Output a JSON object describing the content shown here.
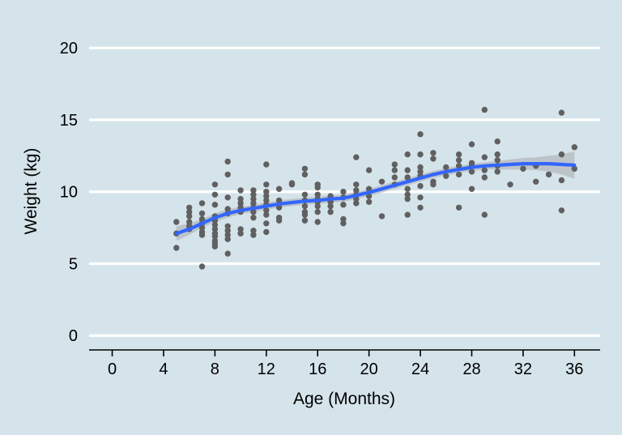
{
  "chart_data": {
    "type": "scatter",
    "xlabel": "Age (Months)",
    "ylabel": "Weight (kg)",
    "xlim": [
      -1.8,
      38.0
    ],
    "ylim": [
      -1.0,
      20.8
    ],
    "xticks": [
      0,
      4,
      8,
      12,
      16,
      20,
      24,
      28,
      32,
      36
    ],
    "yticks": [
      0,
      5,
      10,
      15,
      20
    ],
    "grid": "horizontal",
    "legend": "none",
    "colors": {
      "background": "#d5e4eb",
      "gridline": "#ffffff",
      "points": "#606060",
      "smooth": "#3366ff",
      "ribbon": "#b4b9bd"
    },
    "points": [
      [
        5,
        7.9
      ],
      [
        5,
        7.1
      ],
      [
        5,
        6.1
      ],
      [
        6,
        8.9
      ],
      [
        6,
        8.6
      ],
      [
        6,
        8.3
      ],
      [
        6,
        7.9
      ],
      [
        6,
        7.6
      ],
      [
        6,
        7.4
      ],
      [
        7,
        9.2
      ],
      [
        7,
        8.5
      ],
      [
        7,
        8.1
      ],
      [
        7,
        7.8
      ],
      [
        7,
        7.5
      ],
      [
        7,
        7.2
      ],
      [
        7,
        7.0
      ],
      [
        7,
        4.8
      ],
      [
        8,
        10.5
      ],
      [
        8,
        9.8
      ],
      [
        8,
        9.1
      ],
      [
        8,
        8.3
      ],
      [
        8,
        8.0
      ],
      [
        8,
        7.7
      ],
      [
        8,
        7.4
      ],
      [
        8,
        7.1
      ],
      [
        8,
        6.9
      ],
      [
        8,
        6.6
      ],
      [
        8,
        6.4
      ],
      [
        8,
        6.2
      ],
      [
        9,
        12.1
      ],
      [
        9,
        11.2
      ],
      [
        9,
        9.6
      ],
      [
        9,
        8.8
      ],
      [
        9,
        8.5
      ],
      [
        9,
        7.6
      ],
      [
        9,
        7.3
      ],
      [
        9,
        7.0
      ],
      [
        9,
        6.7
      ],
      [
        9,
        5.7
      ],
      [
        10,
        10.1
      ],
      [
        10,
        9.5
      ],
      [
        10,
        9.2
      ],
      [
        10,
        8.9
      ],
      [
        10,
        8.6
      ],
      [
        10,
        7.4
      ],
      [
        10,
        7.1
      ],
      [
        11,
        10.1
      ],
      [
        11,
        9.8
      ],
      [
        11,
        9.5
      ],
      [
        11,
        9.2
      ],
      [
        11,
        8.9
      ],
      [
        11,
        8.6
      ],
      [
        11,
        8.2
      ],
      [
        11,
        7.3
      ],
      [
        11,
        7.0
      ],
      [
        12,
        11.9
      ],
      [
        12,
        10.5
      ],
      [
        12,
        10.0
      ],
      [
        12,
        9.7
      ],
      [
        12,
        9.4
      ],
      [
        12,
        9.1
      ],
      [
        12,
        8.7
      ],
      [
        12,
        8.4
      ],
      [
        12,
        7.8
      ],
      [
        12,
        7.2
      ],
      [
        13,
        10.2
      ],
      [
        13,
        9.4
      ],
      [
        13,
        8.9
      ],
      [
        13,
        8.2
      ],
      [
        13,
        8.0
      ],
      [
        14,
        10.6
      ],
      [
        14,
        10.5
      ],
      [
        15,
        11.6
      ],
      [
        15,
        11.2
      ],
      [
        15,
        9.8
      ],
      [
        15,
        9.4
      ],
      [
        15,
        9.0
      ],
      [
        15,
        8.6
      ],
      [
        15,
        8.4
      ],
      [
        15,
        8.0
      ],
      [
        16,
        10.5
      ],
      [
        16,
        10.3
      ],
      [
        16,
        9.8
      ],
      [
        16,
        9.5
      ],
      [
        16,
        9.3
      ],
      [
        16,
        9.0
      ],
      [
        16,
        8.6
      ],
      [
        16,
        7.9
      ],
      [
        17,
        9.7
      ],
      [
        17,
        9.3
      ],
      [
        17,
        9.0
      ],
      [
        17,
        8.6
      ],
      [
        18,
        10.0
      ],
      [
        18,
        9.6
      ],
      [
        18,
        9.1
      ],
      [
        18,
        8.1
      ],
      [
        18,
        7.8
      ],
      [
        19,
        12.4
      ],
      [
        19,
        10.5
      ],
      [
        19,
        10.1
      ],
      [
        19,
        9.8
      ],
      [
        19,
        9.5
      ],
      [
        19,
        9.2
      ],
      [
        20,
        11.5
      ],
      [
        20,
        10.2
      ],
      [
        20,
        9.7
      ],
      [
        20,
        9.3
      ],
      [
        21,
        10.7
      ],
      [
        21,
        8.3
      ],
      [
        22,
        11.9
      ],
      [
        22,
        11.5
      ],
      [
        22,
        11.0
      ],
      [
        22,
        10.5
      ],
      [
        23,
        12.6
      ],
      [
        23,
        11.5
      ],
      [
        23,
        11.0
      ],
      [
        23,
        10.2
      ],
      [
        23,
        9.8
      ],
      [
        23,
        9.5
      ],
      [
        23,
        8.4
      ],
      [
        24,
        14.0
      ],
      [
        24,
        12.6
      ],
      [
        24,
        11.7
      ],
      [
        24,
        11.4
      ],
      [
        24,
        11.1
      ],
      [
        24,
        10.4
      ],
      [
        24,
        9.6
      ],
      [
        24,
        8.9
      ],
      [
        25,
        12.7
      ],
      [
        25,
        12.3
      ],
      [
        25,
        10.7
      ],
      [
        25,
        10.5
      ],
      [
        26,
        11.7
      ],
      [
        26,
        11.1
      ],
      [
        27,
        12.6
      ],
      [
        27,
        12.2
      ],
      [
        27,
        11.8
      ],
      [
        27,
        11.2
      ],
      [
        27,
        8.9
      ],
      [
        28,
        13.3
      ],
      [
        28,
        12.0
      ],
      [
        28,
        11.8
      ],
      [
        28,
        11.4
      ],
      [
        28,
        10.2
      ],
      [
        29,
        15.7
      ],
      [
        29,
        12.4
      ],
      [
        29,
        11.5
      ],
      [
        29,
        11.0
      ],
      [
        29,
        8.4
      ],
      [
        30,
        13.5
      ],
      [
        30,
        12.6
      ],
      [
        30,
        12.2
      ],
      [
        30,
        11.8
      ],
      [
        30,
        11.4
      ],
      [
        31,
        10.5
      ],
      [
        32,
        11.6
      ],
      [
        33,
        11.8
      ],
      [
        33,
        10.7
      ],
      [
        34,
        11.2
      ],
      [
        35,
        15.5
      ],
      [
        35,
        12.6
      ],
      [
        35,
        10.8
      ],
      [
        35,
        8.7
      ],
      [
        36,
        13.1
      ],
      [
        36,
        11.6
      ]
    ],
    "smooth": {
      "x": [
        5,
        6,
        7,
        8,
        9,
        10,
        11,
        12,
        13,
        14,
        15,
        16,
        17,
        18,
        19,
        20,
        21,
        22,
        23,
        24,
        25,
        26,
        27,
        28,
        29,
        30,
        31,
        32,
        33,
        34,
        35,
        36
      ],
      "y": [
        7.1,
        7.4,
        7.8,
        8.2,
        8.5,
        8.7,
        8.85,
        9.0,
        9.15,
        9.25,
        9.35,
        9.4,
        9.5,
        9.55,
        9.75,
        9.95,
        10.2,
        10.45,
        10.7,
        10.95,
        11.2,
        11.4,
        11.55,
        11.7,
        11.8,
        11.85,
        11.9,
        11.95,
        11.95,
        11.95,
        11.9,
        11.85
      ],
      "lower": [
        6.6,
        7.0,
        7.5,
        7.9,
        8.2,
        8.45,
        8.6,
        8.75,
        8.9,
        9.0,
        9.1,
        9.15,
        9.25,
        9.3,
        9.5,
        9.7,
        9.95,
        10.2,
        10.45,
        10.7,
        10.95,
        11.15,
        11.3,
        11.45,
        11.55,
        11.55,
        11.55,
        11.55,
        11.5,
        11.4,
        11.2,
        10.9
      ],
      "upper": [
        7.6,
        7.8,
        8.1,
        8.5,
        8.8,
        8.95,
        9.1,
        9.25,
        9.4,
        9.5,
        9.6,
        9.65,
        9.75,
        9.8,
        10.0,
        10.2,
        10.45,
        10.7,
        10.95,
        11.2,
        11.45,
        11.65,
        11.8,
        11.95,
        12.05,
        12.15,
        12.25,
        12.35,
        12.4,
        12.5,
        12.6,
        12.8
      ]
    }
  }
}
